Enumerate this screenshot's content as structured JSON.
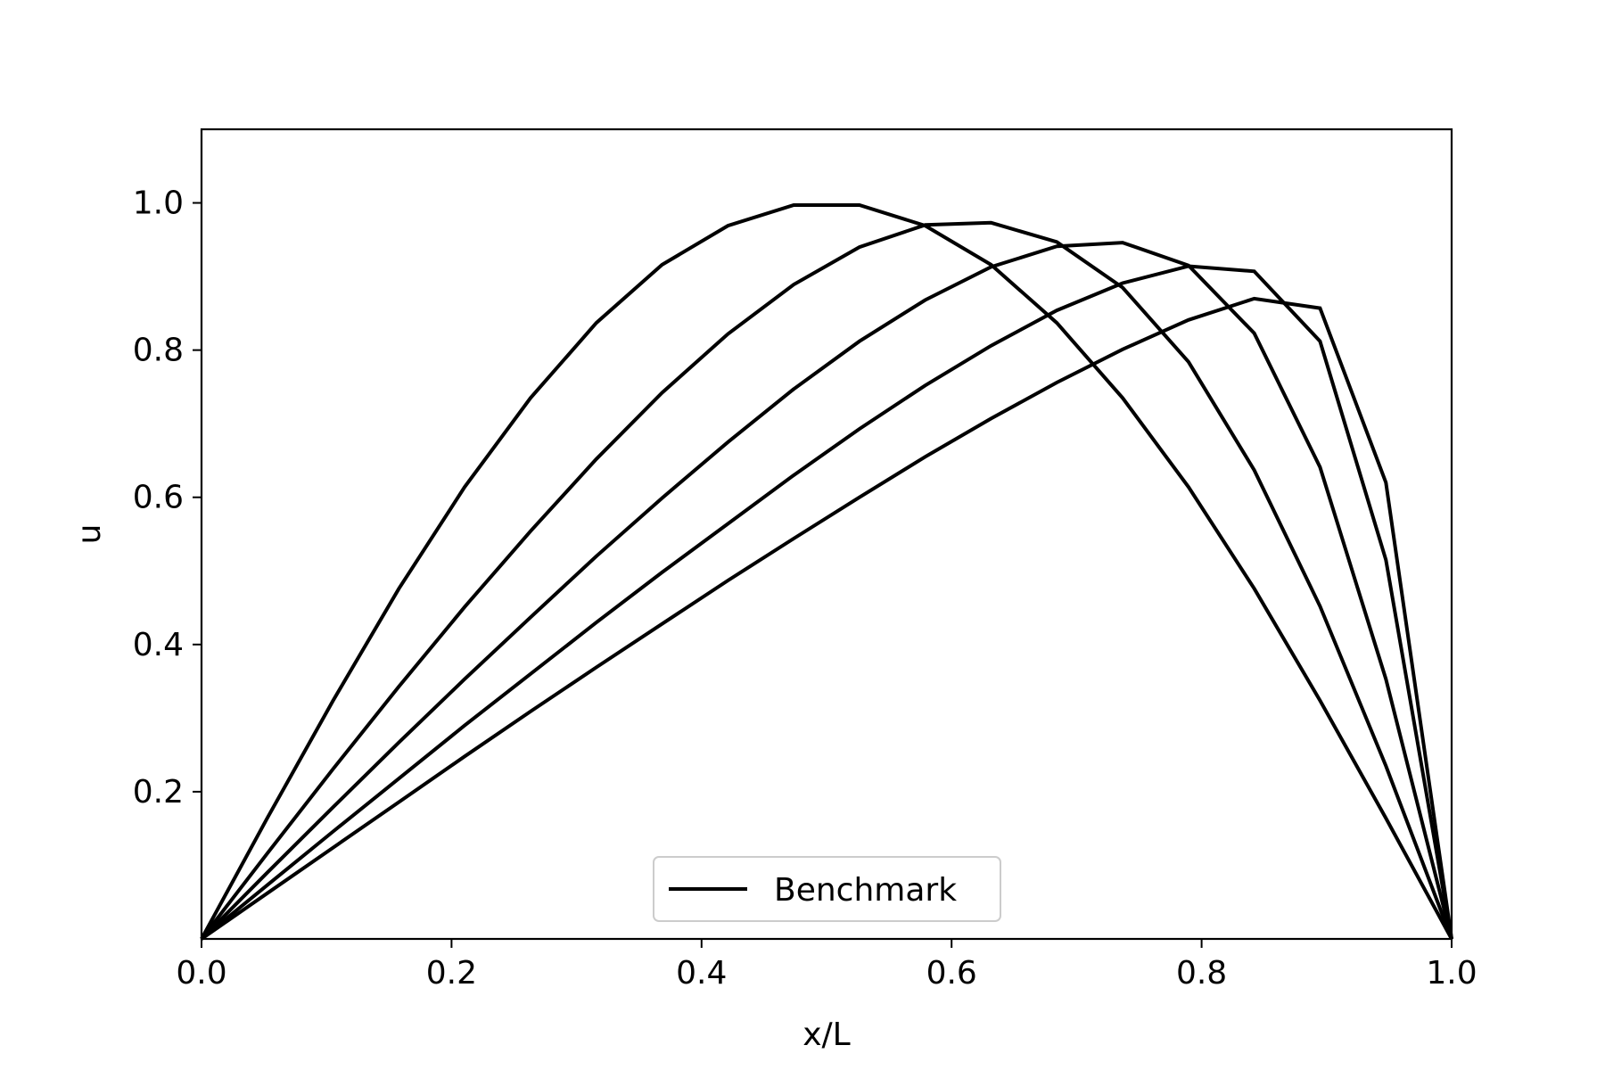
{
  "chart_data": {
    "type": "line",
    "xlabel": "x/L",
    "ylabel": "u",
    "xlim": [
      0.0,
      1.0
    ],
    "ylim": [
      0.0,
      1.1
    ],
    "x_ticks": [
      "0.0",
      "0.2",
      "0.4",
      "0.6",
      "0.8",
      "1.0"
    ],
    "y_ticks": [
      "0.2",
      "0.4",
      "0.6",
      "0.8",
      "1.0"
    ],
    "grid": false,
    "legend": {
      "placement": "lower center",
      "entries": [
        "Benchmark"
      ]
    },
    "line_color": "#000000",
    "x": [
      0.0,
      0.0526,
      0.1053,
      0.1579,
      0.2105,
      0.2632,
      0.3158,
      0.3684,
      0.4211,
      0.4737,
      0.5263,
      0.5789,
      0.6316,
      0.6842,
      0.7368,
      0.7895,
      0.8421,
      0.8947,
      0.9474,
      1.0
    ],
    "series": [
      {
        "values": [
          0.0,
          0.164,
          0.324,
          0.476,
          0.614,
          0.735,
          0.837,
          0.916,
          0.969,
          0.997,
          0.997,
          0.969,
          0.916,
          0.837,
          0.735,
          0.614,
          0.476,
          0.324,
          0.164,
          0.0
        ]
      },
      {
        "values": [
          0.0,
          0.116,
          0.231,
          0.343,
          0.451,
          0.554,
          0.652,
          0.742,
          0.822,
          0.889,
          0.94,
          0.97,
          0.973,
          0.947,
          0.885,
          0.784,
          0.637,
          0.452,
          0.235,
          0.0
        ]
      },
      {
        "values": [
          0.0,
          0.09,
          0.179,
          0.267,
          0.353,
          0.437,
          0.52,
          0.599,
          0.675,
          0.747,
          0.812,
          0.868,
          0.913,
          0.941,
          0.946,
          0.915,
          0.823,
          0.641,
          0.353,
          0.0
        ]
      },
      {
        "values": [
          0.0,
          0.073,
          0.146,
          0.218,
          0.29,
          0.36,
          0.43,
          0.498,
          0.564,
          0.63,
          0.693,
          0.752,
          0.806,
          0.854,
          0.891,
          0.914,
          0.907,
          0.812,
          0.515,
          0.0
        ]
      },
      {
        "values": [
          0.0,
          0.062,
          0.124,
          0.186,
          0.248,
          0.309,
          0.369,
          0.428,
          0.487,
          0.544,
          0.6,
          0.655,
          0.707,
          0.756,
          0.801,
          0.841,
          0.87,
          0.857,
          0.62,
          0.0
        ]
      }
    ]
  }
}
